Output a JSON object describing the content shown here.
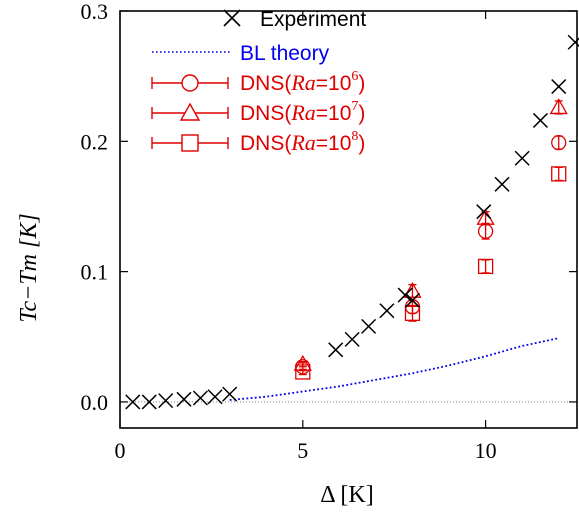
{
  "chart_data": {
    "type": "scatter",
    "xlabel": "Δ [K]",
    "ylabel": "Tc−Tm [K]",
    "xlim": [
      0,
      12.5
    ],
    "ylim": [
      -0.02,
      0.3
    ],
    "x_ticks": [
      "0",
      "5",
      "10"
    ],
    "y_ticks": [
      "0.0",
      "0.1",
      "0.2",
      "0.3"
    ],
    "x_tick_values": [
      0,
      5,
      10
    ],
    "y_tick_values": [
      0.0,
      0.1,
      0.2,
      0.3
    ],
    "zero_line": true,
    "grid": false,
    "legend_position": "top",
    "series": [
      {
        "name": "Experiment",
        "marker": "cross",
        "color": "#000000",
        "points": [
          [
            0.35,
            0.0
          ],
          [
            0.8,
            0.0
          ],
          [
            1.25,
            0.001
          ],
          [
            1.75,
            0.002
          ],
          [
            2.2,
            0.003
          ],
          [
            2.6,
            0.004
          ],
          [
            3.0,
            0.006
          ],
          [
            5.9,
            0.04
          ],
          [
            6.35,
            0.048
          ],
          [
            6.8,
            0.058
          ],
          [
            7.3,
            0.07
          ],
          [
            7.8,
            0.082
          ],
          [
            8.0,
            0.078
          ],
          [
            9.95,
            0.146
          ],
          [
            10.45,
            0.167
          ],
          [
            11.0,
            0.187
          ],
          [
            11.5,
            0.216
          ],
          [
            12.0,
            0.242
          ],
          [
            12.45,
            0.276
          ]
        ]
      },
      {
        "name": "BL theory",
        "style": "dotted-line",
        "color": "#0000ee",
        "points": [
          [
            3.0,
            0.0015
          ],
          [
            4.0,
            0.004
          ],
          [
            5.0,
            0.008
          ],
          [
            6.0,
            0.012
          ],
          [
            7.0,
            0.017
          ],
          [
            8.0,
            0.022
          ],
          [
            9.0,
            0.028
          ],
          [
            10.0,
            0.035
          ],
          [
            11.0,
            0.043
          ],
          [
            12.0,
            0.049
          ]
        ]
      },
      {
        "name_prefix": "DNS(",
        "name_italic": "Ra",
        "name_eq": "=10",
        "name_sup": "6",
        "name_suffix": ")",
        "marker": "circle",
        "color": "#e00000",
        "points": [
          [
            5.0,
            0.027,
            0.003
          ],
          [
            8.0,
            0.073,
            0.005
          ],
          [
            10.0,
            0.131,
            0.006
          ],
          [
            12.0,
            0.199,
            0.005
          ]
        ]
      },
      {
        "name_prefix": "DNS(",
        "name_italic": "Ra",
        "name_eq": "=10",
        "name_sup": "7",
        "name_suffix": ")",
        "marker": "triangle",
        "color": "#e00000",
        "points": [
          [
            5.0,
            0.029,
            0.002
          ],
          [
            8.0,
            0.085,
            0.005
          ],
          [
            10.0,
            0.141,
            0.005
          ],
          [
            12.0,
            0.226,
            0.005
          ]
        ]
      },
      {
        "name_prefix": "DNS(",
        "name_italic": "Ra",
        "name_eq": "=10",
        "name_sup": "8",
        "name_suffix": ")",
        "marker": "square",
        "color": "#e00000",
        "points": [
          [
            5.0,
            0.023,
            0.002
          ],
          [
            8.0,
            0.068,
            0.006
          ],
          [
            10.0,
            0.104,
            0.005
          ],
          [
            12.0,
            0.175,
            0.005
          ]
        ]
      }
    ]
  }
}
